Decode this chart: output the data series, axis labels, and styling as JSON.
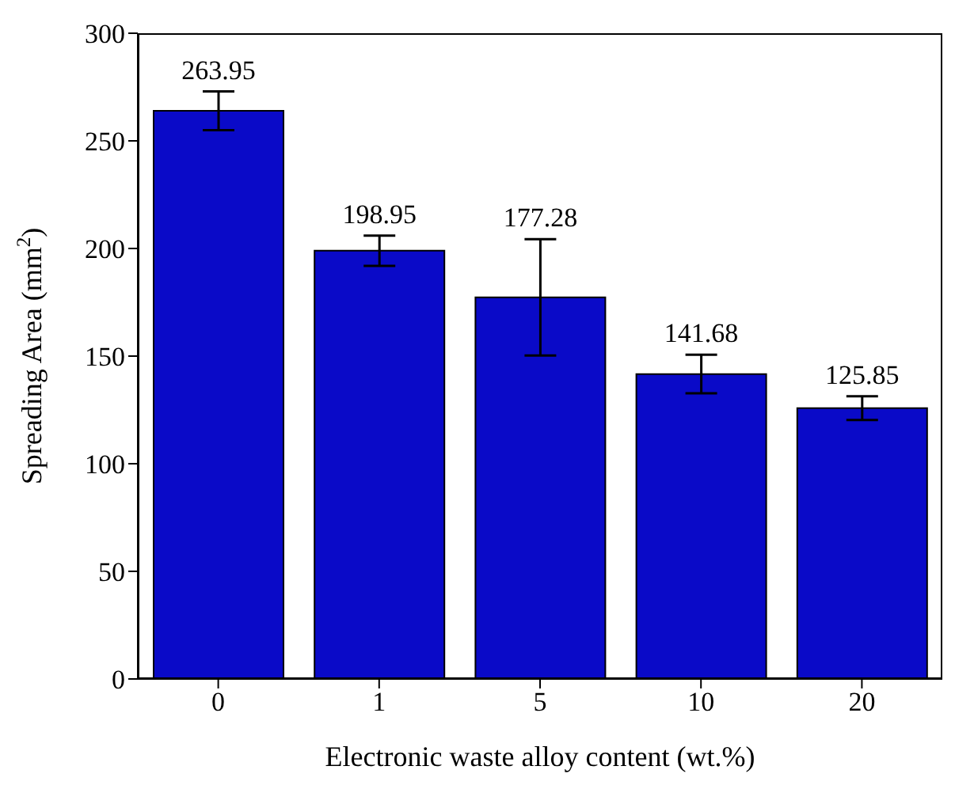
{
  "chart_data": {
    "type": "bar",
    "xlabel": "Electronic waste alloy content (wt.%)",
    "ylabel": "Spreading Area (mm$^{2}$)",
    "categories": [
      "0",
      "1",
      "5",
      "10",
      "20"
    ],
    "values": [
      263.95,
      198.95,
      177.28,
      141.68,
      125.85
    ],
    "data_labels": true,
    "errors": [
      9,
      7,
      27,
      9,
      5.5
    ],
    "color": "#0a0ac8",
    "ylim": [
      0,
      300
    ],
    "yticks": [
      0,
      50,
      100,
      150,
      200,
      250,
      300
    ],
    "grid": false
  }
}
